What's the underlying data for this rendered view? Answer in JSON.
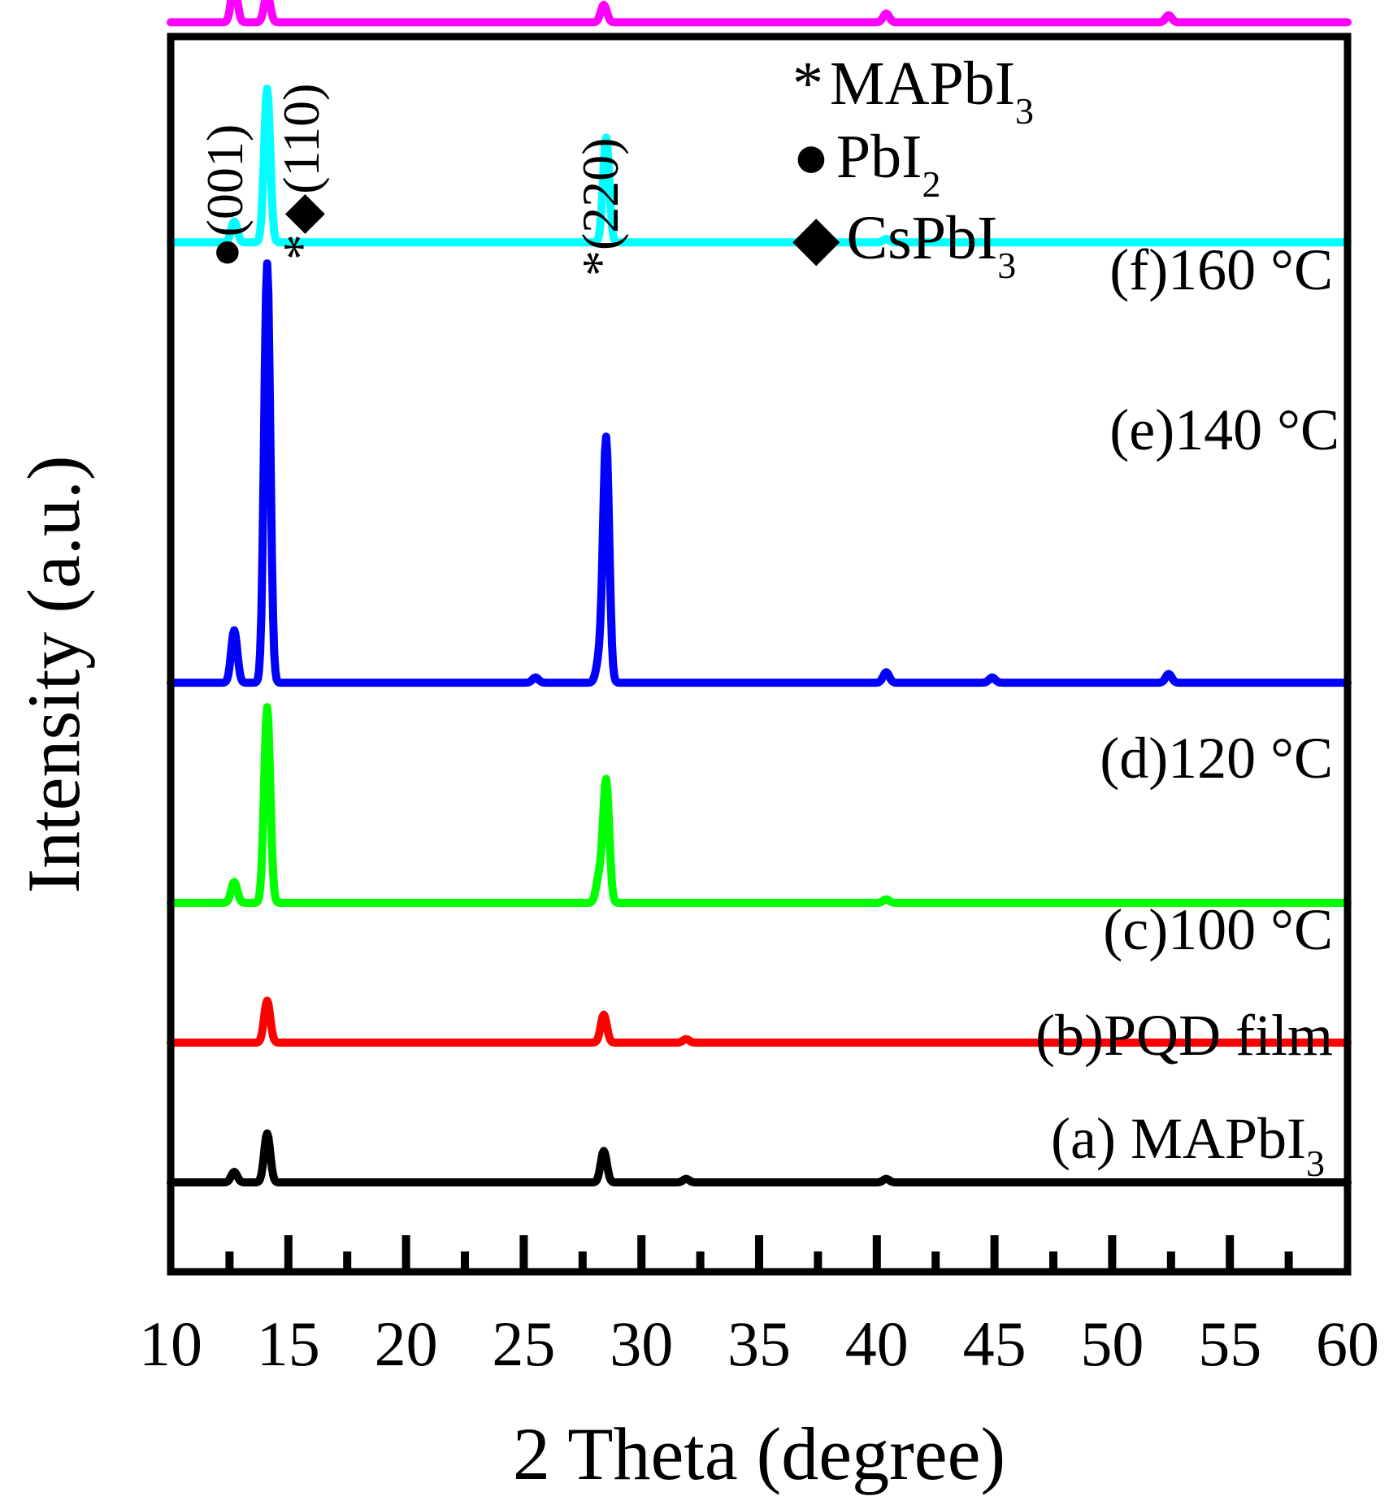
{
  "chart_data": {
    "type": "line",
    "title": "",
    "xlabel": "2 Theta (degree)",
    "ylabel": "Intensity (a.u.)",
    "xlim": [
      10,
      60
    ],
    "x_ticks": [
      10,
      15,
      20,
      25,
      30,
      35,
      40,
      45,
      50,
      55,
      60
    ],
    "x_tick_labels": [
      "10",
      "15",
      "20",
      "25",
      "30",
      "35",
      "40",
      "45",
      "50",
      "55",
      "60"
    ],
    "grid": false,
    "legend_position": "top-right",
    "legend": [
      {
        "marker": "*",
        "text": "MAPbI",
        "subscript": "3"
      },
      {
        "marker": "●",
        "text": "PbI",
        "subscript": "2"
      },
      {
        "marker": "◆",
        "text": "CsPbI",
        "subscript": "3"
      }
    ],
    "peak_annotations": [
      {
        "x": 12.7,
        "markers": "●",
        "label": "(001)"
      },
      {
        "x": 14.1,
        "markers": "*◆",
        "label": "(110)"
      },
      {
        "x": 28.4,
        "markers": "*",
        "label": "(220)"
      }
    ],
    "series": [
      {
        "name": "(a) MAPbI",
        "label_text": "(a) MAPbI",
        "label_subscript": "3",
        "color": "#000000",
        "baseline": 0,
        "peaks": [
          {
            "x": 12.7,
            "height": 0.3
          },
          {
            "x": 14.1,
            "height": 1.4
          },
          {
            "x": 28.4,
            "height": 0.9
          },
          {
            "x": 31.9,
            "height": 0.1
          },
          {
            "x": 40.4,
            "height": 0.1
          }
        ]
      },
      {
        "name": "(b)PQD film",
        "label_text": "(b)PQD film",
        "label_subscript": "",
        "color": "#ff0000",
        "baseline": 4.0,
        "peaks": [
          {
            "x": 14.1,
            "height": 1.2
          },
          {
            "x": 28.4,
            "height": 0.8
          },
          {
            "x": 31.9,
            "height": 0.1
          }
        ]
      },
      {
        "name": "(c)100 °C",
        "label_text": "(c)100 °C",
        "label_subscript": "",
        "color": "#00ff00",
        "baseline": 8.0,
        "peaks": [
          {
            "x": 12.7,
            "height": 0.6
          },
          {
            "x": 14.1,
            "height": 5.6
          },
          {
            "x": 28.2,
            "height": 0.7
          },
          {
            "x": 28.5,
            "height": 3.5
          },
          {
            "x": 40.4,
            "height": 0.1
          }
        ]
      },
      {
        "name": "(d)120 °C",
        "label_text": "(d)120 °C",
        "label_subscript": "",
        "color": "#0000ff",
        "baseline": 14.3,
        "peaks": [
          {
            "x": 12.7,
            "height": 1.5
          },
          {
            "x": 14.1,
            "height": 12.0
          },
          {
            "x": 25.5,
            "height": 0.15
          },
          {
            "x": 28.2,
            "height": 0.6
          },
          {
            "x": 28.5,
            "height": 7.0
          },
          {
            "x": 40.4,
            "height": 0.3
          },
          {
            "x": 44.9,
            "height": 0.15
          },
          {
            "x": 52.4,
            "height": 0.25
          }
        ]
      },
      {
        "name": "(e)140 °C",
        "label_text": "(e)140 °C",
        "label_subscript": "",
        "color": "#00ffff",
        "baseline": 26.9,
        "peaks": [
          {
            "x": 12.7,
            "height": 0.6
          },
          {
            "x": 14.1,
            "height": 4.4
          },
          {
            "x": 28.5,
            "height": 3.0
          },
          {
            "x": 40.4,
            "height": 0.1
          }
        ]
      },
      {
        "name": "(f)160 °C",
        "label_text": "(f)160 °C",
        "label_subscript": "",
        "color": "#ff00ff",
        "baseline": 33.2,
        "peaks": [
          {
            "x": 12.7,
            "height": 1.1
          },
          {
            "x": 14.1,
            "height": 0.8
          },
          {
            "x": 28.4,
            "height": 0.5
          },
          {
            "x": 40.4,
            "height": 0.25
          },
          {
            "x": 52.4,
            "height": 0.2
          }
        ]
      }
    ]
  }
}
